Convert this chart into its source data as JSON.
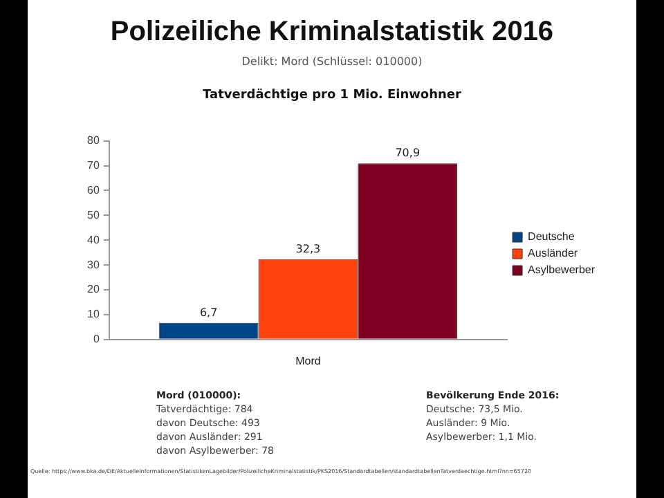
{
  "chart_data": {
    "type": "bar",
    "title": "Polizeiliche Kriminalstatistik 2016",
    "subtitle": "Delikt: Mord (Schlüssel: 010000)",
    "annotations": [
      "Tatverdächtige pro 1 Mio. Einwohner",
      "Mord (010000):\nTatverdächtige: 784\ndavon Deutsche: 493\ndavon Ausländer: 291\ndavon Asylbewerber: 78",
      "Bevölkerung Ende 2016:\nDeutsche: 73,5 Mio.\nAusländer: 9 Mio.\nAsylbewerber: 1,1 Mio.",
      "Quelle: https://www.bka.de/DE/AktuelleInformationen/StatistikenLagebilder/PolizeilicheKriminalstatistik/PKS2016/Standardtabellen/standardtabellenTatverdaechtige.html?nn=65720"
    ],
    "categories": [
      "Mord"
    ],
    "series": [
      {
        "name": "Deutsche",
        "color": "#004586",
        "values": [
          6.7
        ],
        "value_labels": [
          "6,7"
        ]
      },
      {
        "name": "Ausländer",
        "color": "#ff420e",
        "values": [
          32.3
        ],
        "value_labels": [
          "32,3"
        ]
      },
      {
        "name": "Asylbewerber",
        "color": "#7e0021",
        "values": [
          70.9
        ],
        "value_labels": [
          "70,9"
        ]
      }
    ],
    "ylim": [
      0,
      80
    ],
    "yticks": [
      0,
      10,
      20,
      30,
      40,
      50,
      60,
      70,
      80
    ],
    "grid": false,
    "legend": "right"
  }
}
